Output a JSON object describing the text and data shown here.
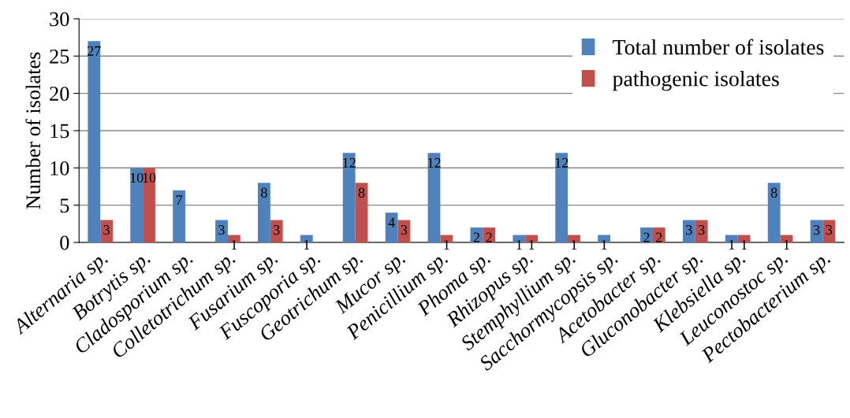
{
  "chart_data": {
    "type": "bar",
    "ylabel": "Number of isolates",
    "categories": [
      "Alternaria sp.",
      "Botrytis sp.",
      "Cladosporium sp.",
      "Colletotrichum sp.",
      "Fusarium sp.",
      "Fuscoporia sp.",
      "Geotrichum sp.",
      "Mucor sp.",
      "Penicillium sp.",
      "Phoma sp.",
      "Rhizopus sp.",
      "Stemphyllium sp.",
      "Sacchormycopsis sp.",
      "Acetobacter sp.",
      "Gluconobacter sp.",
      "Klebsiella sp.",
      "Leuconostoc sp.",
      "Pectobacterium sp."
    ],
    "series": [
      {
        "name": "Total number of isolates",
        "color": "#4f81bd",
        "values": [
          27,
          10,
          7,
          3,
          8,
          1,
          12,
          4,
          12,
          2,
          1,
          12,
          1,
          2,
          3,
          1,
          8,
          3
        ]
      },
      {
        "name": "pathogenic isolates",
        "color": "#c0504d",
        "values": [
          3,
          10,
          null,
          1,
          3,
          null,
          8,
          3,
          1,
          2,
          1,
          1,
          null,
          2,
          3,
          1,
          1,
          3
        ]
      }
    ],
    "ylim": [
      0,
      30
    ],
    "yticks": [
      0,
      5,
      10,
      15,
      20,
      25,
      30
    ],
    "grid": "y",
    "legend": "top right",
    "data_labels": true
  }
}
